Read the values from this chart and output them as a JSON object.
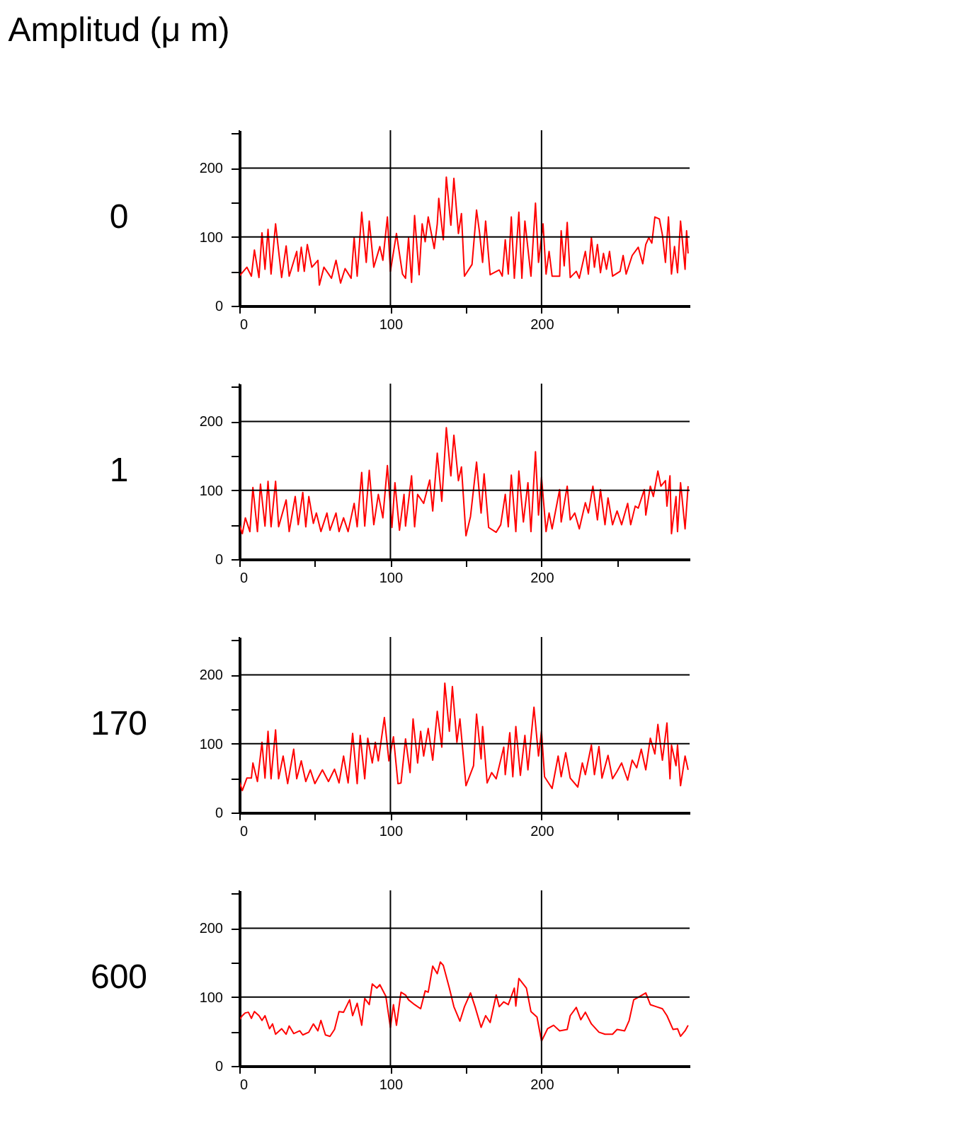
{
  "chart_data": [
    {
      "type": "line",
      "title": "0",
      "annotations": [
        "Amplitud (μ m)"
      ],
      "xlim": [
        0,
        298
      ],
      "ylim": [
        0,
        255
      ],
      "xticks": [
        0,
        {
          "value": 50,
          "label": null
        },
        100,
        {
          "value": 150,
          "label": null
        },
        200,
        {
          "value": 250,
          "label": null
        }
      ],
      "yticks": [
        0,
        {
          "value": 50,
          "label": null
        },
        100,
        {
          "value": 150,
          "label": null
        },
        200,
        {
          "value": 250,
          "label": null
        }
      ],
      "grid": true,
      "legend": false,
      "series": [
        {
          "color": "#ff0000",
          "x": [
            0,
            5,
            8,
            10,
            13,
            15,
            17,
            19,
            21,
            24,
            28,
            31,
            33,
            38,
            39,
            41,
            43,
            45,
            48,
            52,
            53,
            56,
            61,
            64,
            67,
            70,
            74,
            76,
            78,
            81,
            84,
            86,
            89,
            93,
            95,
            98,
            100,
            104,
            108,
            110,
            112,
            114,
            116,
            119,
            121,
            123,
            125,
            129,
            131,
            132,
            135,
            137,
            140,
            142,
            145,
            147,
            149,
            154,
            157,
            159,
            161,
            163,
            166,
            172,
            174,
            176,
            178,
            180,
            182,
            185,
            187,
            189,
            193,
            196,
            198,
            201,
            203,
            205,
            207,
            212,
            213,
            215,
            217,
            219,
            223,
            225,
            229,
            231,
            233,
            235,
            237,
            239,
            241,
            243,
            245,
            247,
            252,
            254,
            256,
            260,
            264,
            267,
            269,
            271,
            273,
            275,
            278,
            280,
            282,
            284,
            286,
            288,
            290,
            292,
            295,
            296,
            297
          ],
          "values": [
            43,
            56,
            43,
            81,
            41,
            106,
            53,
            111,
            46,
            119,
            41,
            87,
            43,
            79,
            50,
            85,
            50,
            89,
            56,
            66,
            30,
            56,
            40,
            66,
            33,
            54,
            40,
            99,
            43,
            136,
            63,
            123,
            56,
            86,
            66,
            129,
            50,
            105,
            46,
            40,
            99,
            34,
            131,
            45,
            119,
            93,
            129,
            83,
            119,
            156,
            96,
            187,
            117,
            185,
            105,
            134,
            43,
            60,
            139,
            106,
            63,
            123,
            45,
            52,
            43,
            96,
            46,
            129,
            40,
            136,
            40,
            123,
            43,
            149,
            63,
            119,
            46,
            79,
            43,
            43,
            109,
            58,
            121,
            41,
            50,
            40,
            79,
            46,
            99,
            56,
            89,
            48,
            76,
            53,
            79,
            43,
            50,
            73,
            46,
            73,
            85,
            61,
            89,
            99,
            91,
            129,
            126,
            103,
            63,
            129,
            46,
            86,
            48,
            123,
            53,
            109,
            76
          ]
        }
      ]
    },
    {
      "type": "line",
      "title": "1",
      "xlim": [
        0,
        298
      ],
      "ylim": [
        0,
        255
      ],
      "xticks": [
        0,
        {
          "value": 50,
          "label": null
        },
        100,
        {
          "value": 150,
          "label": null
        },
        200,
        {
          "value": 250,
          "label": null
        }
      ],
      "yticks": [
        0,
        {
          "value": 50,
          "label": null
        },
        100,
        {
          "value": 150,
          "label": null
        },
        200,
        {
          "value": 250,
          "label": null
        }
      ],
      "grid": true,
      "legend": false,
      "series": [
        {
          "color": "#ff0000",
          "x": [
            0,
            2,
            4,
            7,
            9,
            12,
            14,
            17,
            19,
            21,
            24,
            26,
            31,
            33,
            37,
            39,
            42,
            44,
            46,
            49,
            51,
            54,
            58,
            60,
            64,
            66,
            69,
            72,
            76,
            78,
            81,
            83,
            86,
            89,
            92,
            95,
            98,
            101,
            103,
            106,
            109,
            110,
            114,
            116,
            118,
            122,
            126,
            128,
            131,
            134,
            137,
            140,
            142,
            145,
            147,
            150,
            153,
            157,
            160,
            162,
            165,
            170,
            173,
            176,
            178,
            180,
            183,
            185,
            188,
            191,
            193,
            196,
            198,
            200,
            203,
            205,
            207,
            212,
            213,
            217,
            219,
            222,
            225,
            229,
            231,
            234,
            237,
            239,
            242,
            244,
            247,
            250,
            253,
            257,
            259,
            262,
            264,
            268,
            269,
            272,
            274,
            277,
            279,
            282,
            283,
            285,
            286,
            289,
            290,
            292,
            295,
            297
          ],
          "values": [
            50,
            37,
            60,
            40,
            104,
            40,
            109,
            48,
            113,
            47,
            113,
            47,
            86,
            40,
            91,
            50,
            97,
            47,
            91,
            52,
            67,
            40,
            67,
            42,
            67,
            40,
            60,
            40,
            81,
            47,
            126,
            48,
            129,
            50,
            94,
            60,
            136,
            46,
            111,
            42,
            94,
            48,
            121,
            47,
            94,
            81,
            115,
            70,
            154,
            84,
            191,
            121,
            180,
            114,
            134,
            34,
            62,
            141,
            67,
            124,
            46,
            39,
            50,
            94,
            47,
            122,
            40,
            128,
            54,
            111,
            40,
            156,
            64,
            119,
            40,
            67,
            44,
            101,
            54,
            106,
            57,
            67,
            44,
            82,
            67,
            106,
            57,
            101,
            50,
            89,
            50,
            70,
            50,
            81,
            50,
            77,
            74,
            101,
            64,
            106,
            91,
            128,
            106,
            114,
            77,
            121,
            37,
            91,
            40,
            111,
            44,
            106
          ]
        }
      ]
    },
    {
      "type": "line",
      "title": "170",
      "xlim": [
        0,
        298
      ],
      "ylim": [
        0,
        255
      ],
      "xticks": [
        0,
        {
          "value": 50,
          "label": null
        },
        100,
        {
          "value": 150,
          "label": null
        },
        200,
        {
          "value": 250,
          "label": null
        }
      ],
      "yticks": [
        0,
        {
          "value": 50,
          "label": null
        },
        100,
        {
          "value": 150,
          "label": null
        },
        200,
        {
          "value": 250,
          "label": null
        }
      ],
      "grid": true,
      "legend": false,
      "series": [
        {
          "color": "#ff0000",
          "x": [
            0,
            2,
            5,
            8,
            9,
            12,
            15,
            17,
            19,
            21,
            24,
            26,
            29,
            32,
            36,
            38,
            41,
            44,
            47,
            50,
            55,
            59,
            63,
            66,
            69,
            72,
            75,
            78,
            80,
            83,
            85,
            88,
            90,
            92,
            96,
            99,
            102,
            105,
            107,
            110,
            113,
            115,
            118,
            120,
            122,
            125,
            128,
            131,
            134,
            136,
            139,
            141,
            144,
            146,
            150,
            155,
            157,
            160,
            161,
            164,
            167,
            170,
            175,
            176,
            179,
            181,
            183,
            186,
            189,
            191,
            195,
            198,
            200,
            202,
            207,
            211,
            213,
            216,
            219,
            224,
            227,
            229,
            233,
            235,
            238,
            240,
            244,
            247,
            250,
            253,
            257,
            260,
            263,
            266,
            269,
            272,
            275,
            277,
            280,
            283,
            285,
            286,
            289,
            290,
            292,
            295,
            297
          ],
          "values": [
            45,
            32,
            50,
            50,
            72,
            45,
            102,
            50,
            118,
            49,
            120,
            49,
            82,
            42,
            92,
            49,
            75,
            45,
            62,
            42,
            62,
            45,
            63,
            43,
            82,
            43,
            115,
            42,
            112,
            49,
            108,
            72,
            102,
            75,
            138,
            75,
            110,
            42,
            43,
            107,
            58,
            136,
            72,
            118,
            82,
            122,
            76,
            147,
            95,
            188,
            118,
            183,
            102,
            136,
            39,
            68,
            143,
            78,
            125,
            43,
            58,
            49,
            95,
            55,
            116,
            52,
            125,
            54,
            112,
            62,
            153,
            82,
            118,
            52,
            35,
            82,
            52,
            87,
            50,
            37,
            72,
            55,
            98,
            55,
            96,
            50,
            83,
            49,
            60,
            72,
            47,
            76,
            65,
            92,
            62,
            108,
            85,
            128,
            76,
            130,
            49,
            98,
            68,
            98,
            39,
            82,
            62
          ]
        }
      ]
    },
    {
      "type": "line",
      "title": "600",
      "xlim": [
        0,
        298
      ],
      "ylim": [
        0,
        255
      ],
      "xticks": [
        0,
        {
          "value": 50,
          "label": null
        },
        100,
        {
          "value": 150,
          "label": null
        },
        200,
        {
          "value": 250,
          "label": null
        }
      ],
      "yticks": [
        0,
        {
          "value": 50,
          "label": null
        },
        100,
        {
          "value": 150,
          "label": null
        },
        200,
        {
          "value": 250,
          "label": null
        }
      ],
      "grid": true,
      "legend": false,
      "series": [
        {
          "color": "#ff0000",
          "x": [
            0,
            2,
            4,
            6,
            8,
            10,
            13,
            15,
            17,
            20,
            22,
            24,
            28,
            31,
            33,
            36,
            40,
            42,
            46,
            49,
            52,
            54,
            57,
            60,
            63,
            66,
            69,
            73,
            75,
            78,
            81,
            83,
            86,
            88,
            91,
            93,
            97,
            100,
            102,
            104,
            107,
            110,
            112,
            116,
            120,
            123,
            125,
            128,
            131,
            133,
            135,
            139,
            142,
            146,
            149,
            153,
            156,
            160,
            163,
            166,
            170,
            172,
            175,
            178,
            182,
            183,
            185,
            190,
            193,
            197,
            200,
            204,
            208,
            212,
            217,
            219,
            223,
            226,
            229,
            233,
            238,
            242,
            247,
            250,
            255,
            258,
            261,
            265,
            269,
            272,
            276,
            280,
            283,
            287,
            290,
            292,
            295,
            297
          ],
          "values": [
            67,
            73,
            77,
            78,
            69,
            79,
            73,
            66,
            73,
            54,
            61,
            46,
            54,
            46,
            58,
            47,
            51,
            45,
            49,
            61,
            51,
            66,
            45,
            43,
            53,
            79,
            78,
            96,
            73,
            91,
            59,
            98,
            89,
            119,
            113,
            118,
            101,
            56,
            89,
            59,
            107,
            103,
            96,
            89,
            83,
            109,
            107,
            145,
            134,
            151,
            146,
            113,
            86,
            65,
            86,
            106,
            86,
            56,
            73,
            63,
            103,
            86,
            93,
            89,
            113,
            87,
            127,
            113,
            79,
            71,
            36,
            54,
            59,
            51,
            53,
            73,
            85,
            67,
            78,
            61,
            49,
            46,
            46,
            53,
            51,
            66,
            96,
            101,
            106,
            89,
            86,
            83,
            73,
            53,
            54,
            43,
            51,
            59
          ]
        }
      ]
    }
  ]
}
